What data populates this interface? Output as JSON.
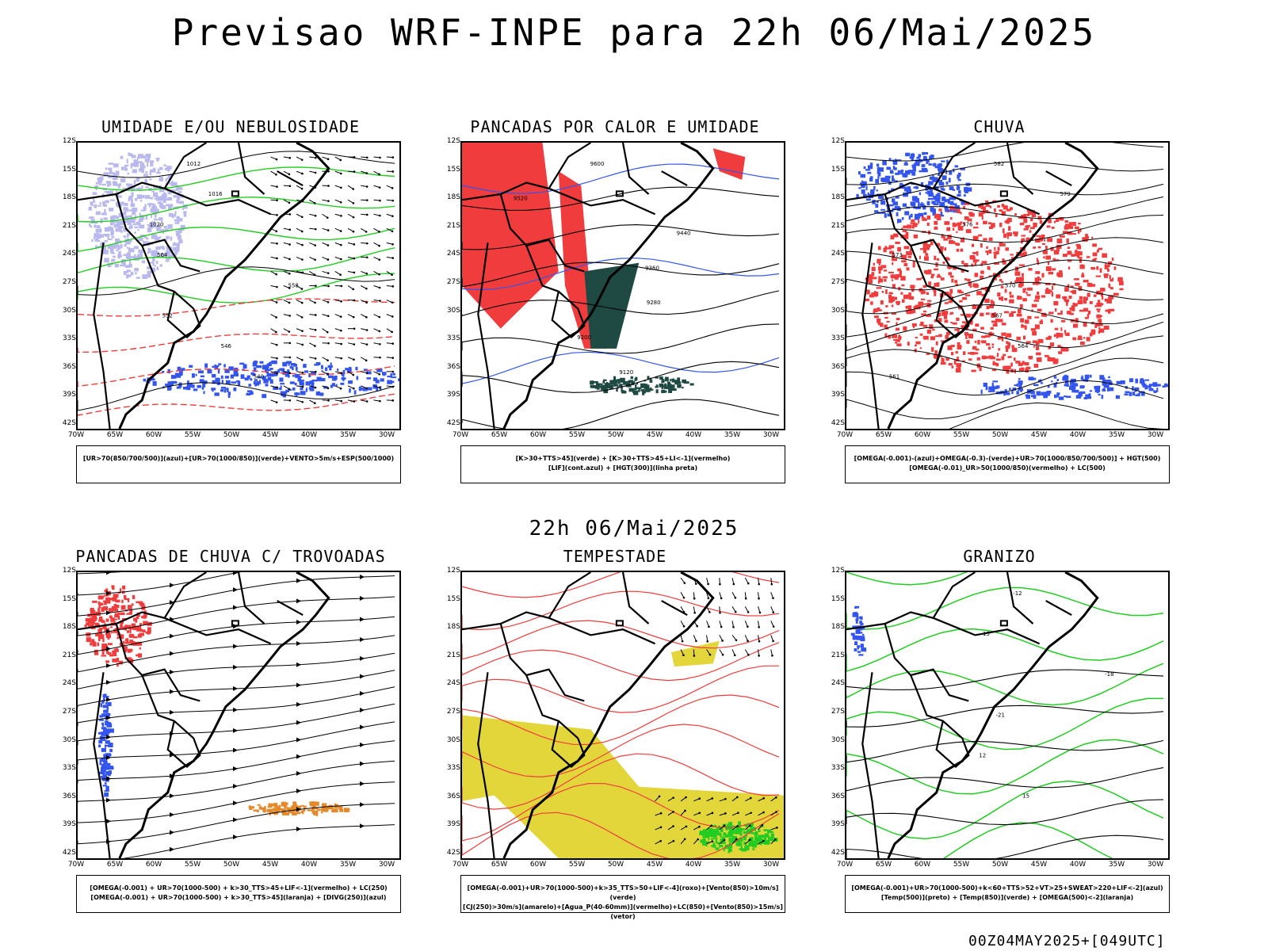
{
  "title": "Previsao WRF-INPE  para 22h 06/Mai/2025",
  "mid_date": "22h 06/Mai/2025",
  "run_info": "00Z04MAY2025+[049UTC]",
  "axes": {
    "lat_labels": [
      "12S",
      "15S",
      "18S",
      "21S",
      "24S",
      "27S",
      "30S",
      "33S",
      "36S",
      "39S",
      "42S"
    ],
    "lon_labels": [
      "70W",
      "65W",
      "60W",
      "55W",
      "50W",
      "45W",
      "40W",
      "35W",
      "30W"
    ]
  },
  "colors": {
    "red": "#f03c3c",
    "green": "#22cc22",
    "blue": "#3355ee",
    "lavender": "#b9b9ee",
    "darkgreen": "#1f4a44",
    "yellow": "#e2d63a",
    "orange": "#e58a2b",
    "black": "#000000"
  },
  "panels": [
    {
      "title": "UMIDADE E/OU NEBULOSIDADE",
      "legend_lines": [
        "[UR>70(850/700/500)](azul)+[UR>70(1000/850)](verde)+VENTO>5m/s+ESP(500/1000)"
      ],
      "contour_labels": [
        "1012",
        "1016",
        "1020",
        "564",
        "558",
        "552",
        "546",
        "540"
      ]
    },
    {
      "title": "PANCADAS POR CALOR E UMIDADE",
      "legend_lines": [
        "[K>30+TTS>45](verde) + [K>30+TTS>45+LI<-1](vermelho)",
        "[LIF](cont.azul) + [HGT(300)](linha preta)"
      ],
      "contour_labels": [
        "9600",
        "9520",
        "9440",
        "9360",
        "9280",
        "9200",
        "9120"
      ]
    },
    {
      "title": "CHUVA",
      "legend_lines": [
        "[OMEGA(-0.001)-(azul)+OMEGA(-0.3)-(verde)+UR>70(1000/850/700/500)] + HGT(500)",
        "[OMEGA(-0.01)_UR>50(1000/850)(vermelho) + LC(500)"
      ],
      "contour_labels": [
        "582",
        "579",
        "576",
        "573",
        "570",
        "567",
        "564",
        "561"
      ]
    },
    {
      "title": "PANCADAS DE CHUVA C/ TROVOADAS",
      "legend_lines": [
        "[OMEGA(-0.001) + UR>70(1000-500) + k>30_TTS>45+LIF<-1](vermelho) + LC(250)",
        "[OMEGA(-0.001) + UR>70(1000-500) + k>30_TTS>45](laranja) + [DIVG(250)](azul)"
      ],
      "contour_labels": []
    },
    {
      "title": "TEMPESTADE",
      "legend_lines": [
        "[OMEGA(-0.001)+UR>70(1000-500)+k>35_TTS>50+LIF<-4](roxo)+[Vento(850)>10m/s](verde)",
        "[CJ(250)>30m/s](amarelo)+[Agua_P(40-60mm)](vermelho)+LC(850)+[Vento(850)>15m/s](vetor)"
      ],
      "contour_labels": []
    },
    {
      "title": "GRANIZO",
      "legend_lines": [
        "[OMEGA(-0.001)+UR>70(1000-500)+k<60+TTS>52+VT>25+SWEAT>220+LIF<-2](azul)",
        "[Temp(500)](preto) + [Temp(850)](verde) + [OMEGA(500)<-2](laranja)"
      ],
      "contour_labels": [
        "-12",
        "-15",
        "-18",
        "-21",
        "12",
        "15"
      ]
    }
  ]
}
